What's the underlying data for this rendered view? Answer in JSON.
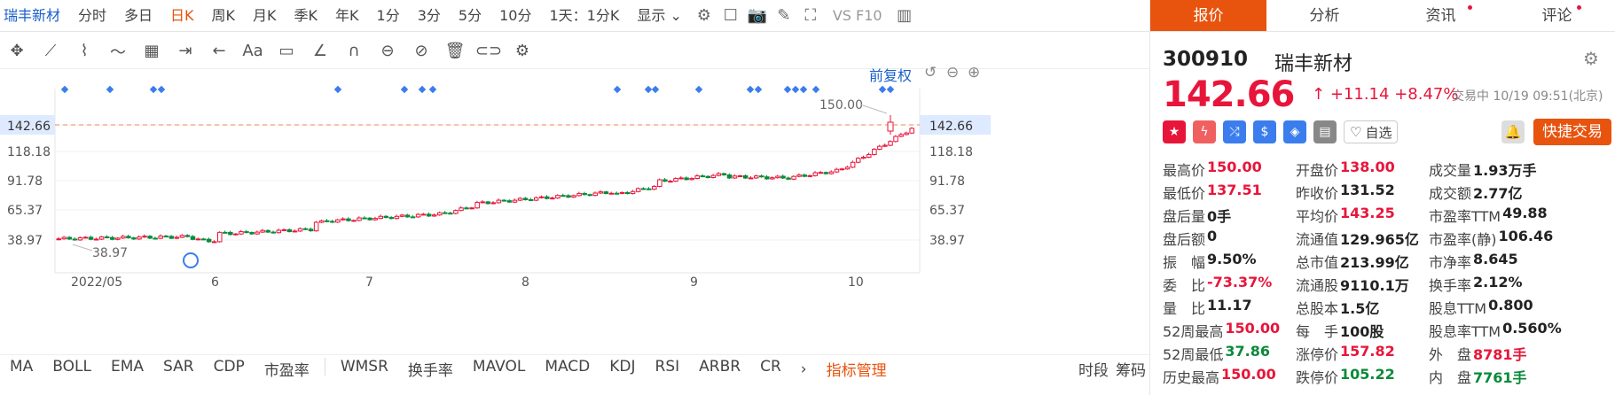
{
  "header": {
    "stock": "瑞丰新材",
    "tabs": [
      "分时",
      "多日",
      "日K",
      "周K",
      "月K",
      "季K",
      "年K",
      "1分",
      "3分",
      "5分",
      "10分",
      "1天：1分K"
    ],
    "active": "日K",
    "display": "显示",
    "vs": "VS F10"
  },
  "chart": {
    "fq": "前复权",
    "ylabels": [
      "142.66",
      "118.18",
      "91.78",
      "65.37",
      "38.97"
    ],
    "hi_label": "150.00",
    "lo_label": "38.97",
    "cur": "142.66",
    "xlabels": [
      "2022/05",
      "6",
      "7",
      "8",
      "9",
      "10"
    ]
  },
  "indicators": [
    "MA",
    "BOLL",
    "EMA",
    "SAR",
    "CDP",
    "市盈率",
    "WMSR",
    "换手率",
    "MAVOL",
    "MACD",
    "KDJ",
    "RSI",
    "ARBR",
    "CR"
  ],
  "ind_manage": "指标管理",
  "ind_right": [
    "时段",
    "筹码"
  ],
  "tabs": [
    "报价",
    "分析",
    "资讯",
    "评论"
  ],
  "quote": {
    "code": "300910",
    "name": "瑞丰新材",
    "price": "142.66",
    "arrow": "↑",
    "change": "+11.14",
    "pct": "+8.47%",
    "status": "交易中 10/19 09:51(北京)",
    "fav": "自选",
    "quick": "快捷交易"
  },
  "stats": [
    [
      [
        "最高价",
        "150.00",
        "red"
      ],
      [
        "开盘价",
        "138.00",
        "red"
      ],
      [
        "成交量",
        "1.93万手",
        ""
      ]
    ],
    [
      [
        "最低价",
        "137.51",
        "red"
      ],
      [
        "昨收价",
        "131.52",
        ""
      ],
      [
        "成交额",
        "2.77亿",
        ""
      ]
    ],
    [
      [
        "盘后量",
        "0手",
        ""
      ],
      [
        "平均价",
        "143.25",
        "red"
      ],
      [
        "市盈率TTM",
        "49.88",
        ""
      ]
    ],
    [
      [
        "盘后额",
        "0",
        ""
      ],
      [
        "流通值",
        "129.965亿",
        ""
      ],
      [
        "市盈率(静)",
        "106.46",
        ""
      ]
    ],
    [
      [
        "振　幅",
        "9.50%",
        ""
      ],
      [
        "总市值",
        "213.99亿",
        ""
      ],
      [
        "市净率",
        "8.645",
        ""
      ]
    ],
    [
      [
        "委　比",
        "-73.37%",
        "red"
      ],
      [
        "流通股",
        "9110.1万",
        ""
      ],
      [
        "换手率",
        "2.12%",
        ""
      ]
    ],
    [
      [
        "量　比",
        "11.17",
        ""
      ],
      [
        "总股本",
        "1.5亿",
        ""
      ],
      [
        "股息TTM",
        "0.800",
        ""
      ]
    ],
    [
      [
        "52周最高",
        "150.00",
        "red"
      ],
      [
        "每　手",
        "100股",
        ""
      ],
      [
        "股息率TTM",
        "0.560%",
        ""
      ]
    ],
    [
      [
        "52周最低",
        "37.86",
        "green"
      ],
      [
        "涨停价",
        "157.82",
        "red"
      ],
      [
        "外　盘",
        "8781手",
        "red"
      ]
    ],
    [
      [
        "历史最高",
        "150.00",
        "red"
      ],
      [
        "跌停价",
        "105.22",
        "green"
      ],
      [
        "内　盘",
        "7761手",
        "green"
      ]
    ]
  ]
}
